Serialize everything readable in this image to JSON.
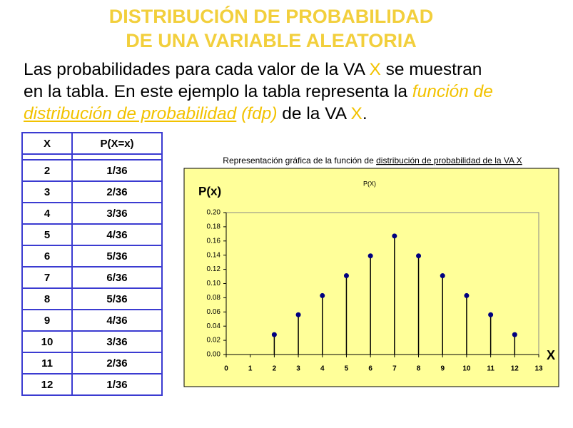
{
  "title_lines": [
    "DISTRIBUCIÓN DE PROBABILIDAD",
    "DE UNA VARIABLE ALEATORIA"
  ],
  "paragraph": {
    "lines": [
      [
        "Las probabilidades para cada valor de la VA ",
        "X",
        " se muestran"
      ],
      [
        "en la tabla. En este ejemplo la tabla representa la ",
        "función de"
      ],
      [
        "distribución de probabilidad",
        " (fdp)",
        " de la VA ",
        "X",
        "."
      ]
    ]
  },
  "table": {
    "header": [
      "X",
      "P(X=x)"
    ],
    "rows": [
      [
        "2",
        "1/36"
      ],
      [
        "3",
        "2/36"
      ],
      [
        "4",
        "3/36"
      ],
      [
        "5",
        "4/36"
      ],
      [
        "6",
        "5/36"
      ],
      [
        "7",
        "6/36"
      ],
      [
        "8",
        "5/36"
      ],
      [
        "9",
        "4/36"
      ],
      [
        "10",
        "3/36"
      ],
      [
        "11",
        "2/36"
      ],
      [
        "12",
        "1/36"
      ]
    ]
  },
  "chart_data": {
    "type": "stem",
    "caption": [
      "Representación gráfica de la función de ",
      "distribución de probabilidad de la VA X"
    ],
    "title": "P(X)",
    "y_label": "P(x)",
    "x_label": "X",
    "x": [
      2,
      3,
      4,
      5,
      6,
      7,
      8,
      9,
      10,
      11,
      12
    ],
    "values": [
      0.028,
      0.056,
      0.083,
      0.111,
      0.139,
      0.167,
      0.139,
      0.111,
      0.083,
      0.056,
      0.028
    ],
    "color": "#000080",
    "xlim": [
      0,
      13
    ],
    "xticks": [
      0,
      1,
      2,
      3,
      4,
      5,
      6,
      7,
      8,
      9,
      10,
      11,
      12,
      13
    ],
    "ylim": [
      0,
      0.2
    ],
    "yticks": [
      {
        "value": 0,
        "label": "0.00"
      },
      0.02,
      0.04,
      0.06,
      0.08,
      {
        "value": 0.1,
        "label": "0.10"
      },
      0.12,
      0.14,
      0.16,
      0.18,
      {
        "value": 0.2,
        "label": "0.20"
      }
    ],
    "background": "#ffff99"
  }
}
